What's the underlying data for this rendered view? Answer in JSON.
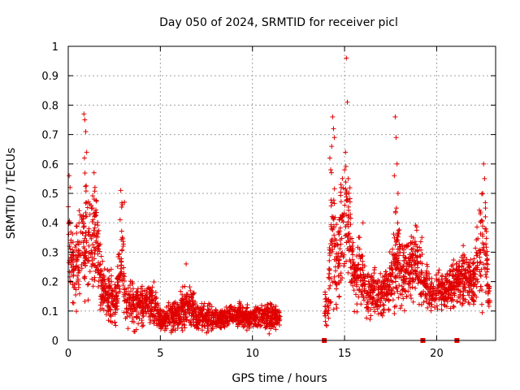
{
  "chart_data": {
    "type": "scatter",
    "title": "Day 050 of 2024, SRMTID for receiver picl",
    "xlabel": "GPS time / hours",
    "ylabel": "SRMTID / TECUs",
    "xlim": [
      0,
      23.2
    ],
    "ylim": [
      0,
      1
    ],
    "xticks": [
      0,
      5,
      10,
      15,
      20
    ],
    "yticks": [
      0,
      0.1,
      0.2,
      0.3,
      0.4,
      0.5,
      0.6,
      0.7,
      0.8,
      0.9,
      1
    ],
    "xtick_labels": [
      "0",
      "5",
      "10",
      "15",
      "20"
    ],
    "ytick_labels": [
      "0",
      "0.1",
      "0.2",
      "0.3",
      "0.4",
      "0.5",
      "0.6",
      "0.7",
      "0.8",
      "0.9",
      "1"
    ],
    "grid": true,
    "marker": "+",
    "color": "#e00000",
    "series_name": "SRMTID",
    "envelope": {
      "description": "approximate median level and spread of plotted points vs GPS time (hours)",
      "x": [
        0.0,
        0.3,
        0.6,
        0.9,
        1.2,
        1.5,
        1.8,
        2.0,
        2.3,
        2.6,
        2.9,
        3.1,
        3.4,
        3.8,
        4.2,
        4.6,
        5.0,
        5.5,
        6.0,
        6.4,
        7.0,
        7.5,
        8.0,
        8.5,
        9.0,
        9.5,
        10.0,
        10.5,
        11.0,
        11.5
      ],
      "y": [
        0.33,
        0.25,
        0.3,
        0.35,
        0.33,
        0.36,
        0.2,
        0.17,
        0.15,
        0.12,
        0.3,
        0.15,
        0.13,
        0.12,
        0.12,
        0.13,
        0.07,
        0.08,
        0.09,
        0.12,
        0.08,
        0.08,
        0.07,
        0.08,
        0.08,
        0.08,
        0.08,
        0.08,
        0.08,
        0.08
      ],
      "spread": [
        0.1,
        0.08,
        0.1,
        0.15,
        0.08,
        0.1,
        0.05,
        0.05,
        0.05,
        0.04,
        0.1,
        0.05,
        0.05,
        0.04,
        0.04,
        0.04,
        0.02,
        0.03,
        0.03,
        0.05,
        0.03,
        0.03,
        0.02,
        0.02,
        0.02,
        0.03,
        0.02,
        0.03,
        0.03,
        0.02
      ]
    },
    "envelope_2": {
      "x": [
        13.9,
        14.1,
        14.3,
        14.6,
        14.9,
        15.2,
        15.5,
        15.8,
        16.1,
        16.5,
        17.0,
        17.5,
        17.8,
        18.1,
        18.5,
        18.9,
        19.3,
        19.6,
        20.0,
        20.4,
        20.8,
        21.2,
        21.6,
        22.0,
        22.3,
        22.6,
        22.9
      ],
      "y": [
        0.12,
        0.12,
        0.4,
        0.25,
        0.4,
        0.45,
        0.2,
        0.25,
        0.18,
        0.16,
        0.15,
        0.2,
        0.3,
        0.22,
        0.25,
        0.28,
        0.2,
        0.17,
        0.17,
        0.16,
        0.18,
        0.2,
        0.22,
        0.18,
        0.3,
        0.3,
        0.12
      ],
      "spread": [
        0.04,
        0.04,
        0.15,
        0.08,
        0.12,
        0.12,
        0.06,
        0.08,
        0.05,
        0.05,
        0.04,
        0.06,
        0.1,
        0.06,
        0.07,
        0.07,
        0.05,
        0.04,
        0.04,
        0.04,
        0.05,
        0.05,
        0.06,
        0.05,
        0.1,
        0.1,
        0.05
      ]
    },
    "outliers": [
      {
        "x": 0.85,
        "y": 0.77
      },
      {
        "x": 0.9,
        "y": 0.75
      },
      {
        "x": 0.95,
        "y": 0.71
      },
      {
        "x": 1.0,
        "y": 0.64
      },
      {
        "x": 0.88,
        "y": 0.62
      },
      {
        "x": 1.4,
        "y": 0.57
      },
      {
        "x": 1.45,
        "y": 0.52
      },
      {
        "x": 2.85,
        "y": 0.51
      },
      {
        "x": 3.05,
        "y": 0.47
      },
      {
        "x": 0.05,
        "y": 0.56
      },
      {
        "x": 0.1,
        "y": 0.52
      },
      {
        "x": 6.4,
        "y": 0.26
      },
      {
        "x": 14.35,
        "y": 0.76
      },
      {
        "x": 14.4,
        "y": 0.72
      },
      {
        "x": 14.3,
        "y": 0.66
      },
      {
        "x": 14.2,
        "y": 0.62
      },
      {
        "x": 14.45,
        "y": 0.69
      },
      {
        "x": 14.25,
        "y": 0.58
      },
      {
        "x": 15.1,
        "y": 0.96
      },
      {
        "x": 15.15,
        "y": 0.81
      },
      {
        "x": 15.05,
        "y": 0.64
      },
      {
        "x": 15.0,
        "y": 0.58
      },
      {
        "x": 15.2,
        "y": 0.55
      },
      {
        "x": 14.8,
        "y": 0.53
      },
      {
        "x": 17.75,
        "y": 0.76
      },
      {
        "x": 17.8,
        "y": 0.69
      },
      {
        "x": 17.85,
        "y": 0.6
      },
      {
        "x": 17.7,
        "y": 0.56
      },
      {
        "x": 17.9,
        "y": 0.5
      },
      {
        "x": 22.55,
        "y": 0.6
      },
      {
        "x": 22.6,
        "y": 0.55
      },
      {
        "x": 22.5,
        "y": 0.5
      },
      {
        "x": 22.65,
        "y": 0.45
      },
      {
        "x": 19.2,
        "y": 0.35
      },
      {
        "x": 16.0,
        "y": 0.4
      }
    ],
    "axis_markers_x": [
      13.9,
      19.25,
      21.1
    ]
  }
}
